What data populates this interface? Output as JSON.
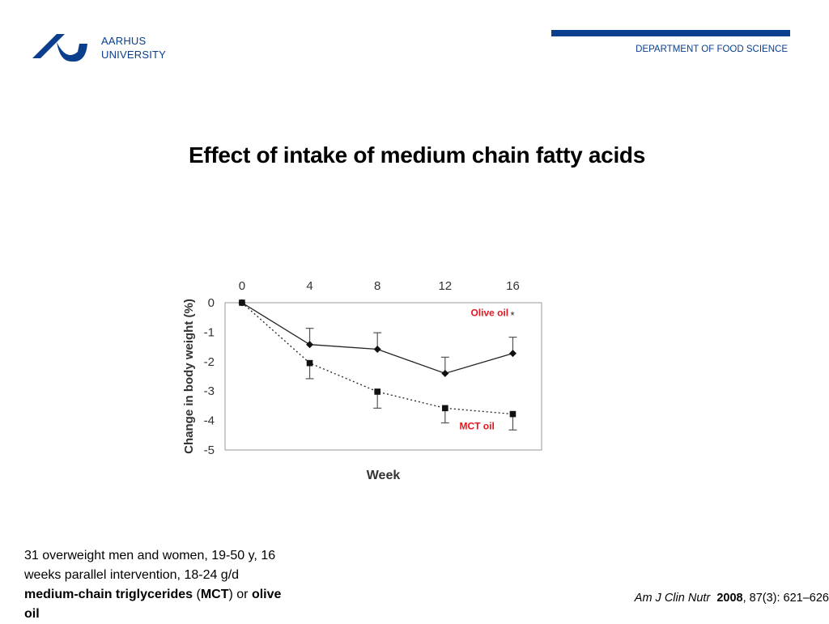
{
  "header": {
    "logo_line1": "AARHUS",
    "logo_line2": "UNIVERSITY",
    "department": "DEPARTMENT OF FOOD SCIENCE",
    "brand_color": "#0b3e8c"
  },
  "slide": {
    "title": "Effect of intake of medium chain fatty acids"
  },
  "chart_data": {
    "type": "line",
    "x": [
      0,
      4,
      8,
      12,
      16
    ],
    "x_tick_labels": [
      "0",
      "4",
      "8",
      "12",
      "16"
    ],
    "xlabel": "Week",
    "ylabel": "Change in body weight (%)",
    "y_ticks": [
      0,
      -1,
      -2,
      -3,
      -4,
      -5
    ],
    "y_tick_labels": [
      "0",
      "-1",
      "-2",
      "-3",
      "-4",
      "-5"
    ],
    "ylim": [
      -5,
      0
    ],
    "xlim": [
      -1,
      17.7
    ],
    "x_axis_position": "top",
    "grid": false,
    "series": [
      {
        "name": "Olive oil",
        "values": [
          0,
          -1.42,
          -1.58,
          -2.4,
          -1.72
        ],
        "error_upper": [
          0,
          -0.87,
          -1.02,
          -1.85,
          -1.17
        ],
        "marker": "diamond",
        "line_style": "solid",
        "label_color": "#e8141c",
        "annotation": "*"
      },
      {
        "name": "MCT oil",
        "values": [
          0,
          -2.05,
          -3.02,
          -3.58,
          -3.78
        ],
        "error_lower": [
          0,
          -2.58,
          -3.58,
          -4.08,
          -4.32
        ],
        "marker": "square",
        "line_style": "dotted",
        "label_color": "#e8141c"
      }
    ]
  },
  "footnote": {
    "part1": "31 overweight men and women, 19-50 y, 16 weeks parallel intervention, 18-24 g/d ",
    "bold1": "medium-chain triglycerides",
    "part2": " (",
    "bold2": "MCT",
    "part3": ") or ",
    "bold3": "olive oil"
  },
  "citation": {
    "journal": "Am J Clin Nutr",
    "year": "2008",
    "details": ", 87(3): 621–626"
  }
}
